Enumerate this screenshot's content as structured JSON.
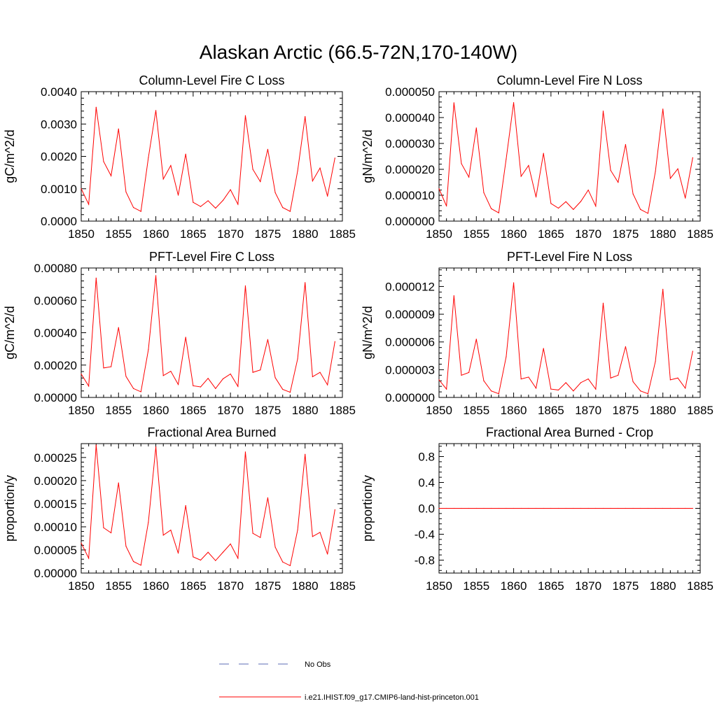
{
  "figure_title": "Alaskan Arctic (66.5-72N,170-140W)",
  "series_color": "#ff0000",
  "obs_color": "#5b6bb5",
  "legend": {
    "items": [
      {
        "label": "No Obs",
        "style": "dashed",
        "color": "#5b6bb5"
      },
      {
        "label": "i.e21.IHIST.f09_g17.CMIP6-land-hist-princeton.001",
        "style": "solid",
        "color": "#ff0000"
      }
    ]
  },
  "chart_data": [
    {
      "type": "line",
      "title": "Column-Level Fire C Loss",
      "ylabel": "gC/m^2/d",
      "xlim": [
        1850,
        1885
      ],
      "ylim": [
        0,
        0.004
      ],
      "xticks": [
        1850,
        1855,
        1860,
        1865,
        1870,
        1875,
        1880,
        1885
      ],
      "xtick_labels": [
        "1850",
        "1855",
        "1860",
        "1865",
        "1870",
        "1875",
        "1880",
        "1885"
      ],
      "yticks": [
        0,
        0.001,
        0.002,
        0.003,
        0.004
      ],
      "ytick_labels": [
        "0.0000",
        "0.0010",
        "0.0020",
        "0.0030",
        "0.0040"
      ],
      "x": [
        1850,
        1851,
        1852,
        1853,
        1854,
        1855,
        1856,
        1857,
        1858,
        1859,
        1860,
        1861,
        1862,
        1863,
        1864,
        1865,
        1866,
        1867,
        1868,
        1869,
        1870,
        1871,
        1872,
        1873,
        1874,
        1875,
        1876,
        1877,
        1878,
        1879,
        1880,
        1881,
        1882,
        1883,
        1884
      ],
      "series": [
        {
          "name": "i.e21.IHIST.f09_g17.CMIP6-land-hist-princeton.001",
          "values": [
            0.001,
            0.00052,
            0.00352,
            0.00184,
            0.0014,
            0.00285,
            0.0009,
            0.00042,
            0.0003,
            0.00196,
            0.00342,
            0.0013,
            0.00172,
            0.0008,
            0.00207,
            0.00058,
            0.00045,
            0.00063,
            0.0004,
            0.00064,
            0.00097,
            0.00052,
            0.00326,
            0.0016,
            0.00122,
            0.00222,
            0.00088,
            0.00042,
            0.0003,
            0.00155,
            0.00323,
            0.00124,
            0.00164,
            0.00077,
            0.00195
          ]
        }
      ]
    },
    {
      "type": "line",
      "title": "Column-Level Fire N Loss",
      "ylabel": "gN/m^2/d",
      "xlim": [
        1850,
        1885
      ],
      "ylim": [
        0,
        5e-05
      ],
      "xticks": [
        1850,
        1855,
        1860,
        1865,
        1870,
        1875,
        1880,
        1885
      ],
      "xtick_labels": [
        "1850",
        "1855",
        "1860",
        "1865",
        "1870",
        "1875",
        "1880",
        "1885"
      ],
      "yticks": [
        0,
        1e-05,
        2e-05,
        3e-05,
        4e-05,
        5e-05
      ],
      "ytick_labels": [
        "0.000000",
        "0.000010",
        "0.000020",
        "0.000030",
        "0.000040",
        "0.000050"
      ],
      "x": [
        1850,
        1851,
        1852,
        1853,
        1854,
        1855,
        1856,
        1857,
        1858,
        1859,
        1860,
        1861,
        1862,
        1863,
        1864,
        1865,
        1866,
        1867,
        1868,
        1869,
        1870,
        1871,
        1872,
        1873,
        1874,
        1875,
        1876,
        1877,
        1878,
        1879,
        1880,
        1881,
        1882,
        1883,
        1884
      ],
      "series": [
        {
          "name": "i.e21.IHIST.f09_g17.CMIP6-land-hist-princeton.001",
          "values": [
            1.25e-05,
            5.8e-06,
            4.57e-05,
            2.22e-05,
            1.7e-05,
            3.6e-05,
            1.1e-05,
            4.8e-06,
            3.2e-06,
            2.4e-05,
            4.58e-05,
            1.73e-05,
            2.15e-05,
            9.3e-06,
            2.62e-05,
            6.8e-06,
            5e-06,
            7.5e-06,
            4.5e-06,
            7.6e-06,
            1.2e-05,
            5.8e-06,
            4.25e-05,
            1.96e-05,
            1.5e-05,
            2.96e-05,
            1.05e-05,
            4.5e-06,
            3e-06,
            1.92e-05,
            4.33e-05,
            1.65e-05,
            2.02e-05,
            8.9e-06,
            2.45e-05
          ]
        }
      ]
    },
    {
      "type": "line",
      "title": "PFT-Level Fire C Loss",
      "ylabel": "gC/m^2/d",
      "xlim": [
        1850,
        1885
      ],
      "ylim": [
        0,
        0.0008
      ],
      "xticks": [
        1850,
        1855,
        1860,
        1865,
        1870,
        1875,
        1880,
        1885
      ],
      "xtick_labels": [
        "1850",
        "1855",
        "1860",
        "1865",
        "1870",
        "1875",
        "1880",
        "1885"
      ],
      "yticks": [
        0,
        0.0002,
        0.0004,
        0.0006,
        0.0008
      ],
      "ytick_labels": [
        "0.00000",
        "0.00020",
        "0.00040",
        "0.00060",
        "0.00080"
      ],
      "x": [
        1850,
        1851,
        1852,
        1853,
        1854,
        1855,
        1856,
        1857,
        1858,
        1859,
        1860,
        1861,
        1862,
        1863,
        1864,
        1865,
        1866,
        1867,
        1868,
        1869,
        1870,
        1871,
        1872,
        1873,
        1874,
        1875,
        1876,
        1877,
        1878,
        1879,
        1880,
        1881,
        1882,
        1883,
        1884
      ],
      "series": [
        {
          "name": "i.e21.IHIST.f09_g17.CMIP6-land-hist-princeton.001",
          "values": [
            0.000145,
            7e-05,
            0.000738,
            0.000182,
            0.00019,
            0.000432,
            0.00013,
            5.5e-05,
            3.5e-05,
            0.000295,
            0.000753,
            0.000135,
            0.000162,
            8e-05,
            0.000372,
            7.2e-05,
            6.5e-05,
            0.000118,
            5.5e-05,
            0.000115,
            0.000145,
            6.8e-05,
            0.00069,
            0.000155,
            0.00017,
            0.000358,
            0.000122,
            5e-05,
            3.2e-05,
            0.000238,
            0.00071,
            0.000128,
            0.000155,
            7.8e-05,
            0.000345
          ]
        }
      ]
    },
    {
      "type": "line",
      "title": "PFT-Level Fire N Loss",
      "ylabel": "gN/m^2/d",
      "xlim": [
        1850,
        1885
      ],
      "ylim": [
        0,
        1.4e-05
      ],
      "xticks": [
        1850,
        1855,
        1860,
        1865,
        1870,
        1875,
        1880,
        1885
      ],
      "xtick_labels": [
        "1850",
        "1855",
        "1860",
        "1865",
        "1870",
        "1875",
        "1880",
        "1885"
      ],
      "yticks": [
        0,
        3e-06,
        6e-06,
        9e-06,
        1.2e-05
      ],
      "ytick_labels": [
        "0.000000",
        "0.000003",
        "0.000006",
        "0.000009",
        "0.000012"
      ],
      "x": [
        1850,
        1851,
        1852,
        1853,
        1854,
        1855,
        1856,
        1857,
        1858,
        1859,
        1860,
        1861,
        1862,
        1863,
        1864,
        1865,
        1866,
        1867,
        1868,
        1869,
        1870,
        1871,
        1872,
        1873,
        1874,
        1875,
        1876,
        1877,
        1878,
        1879,
        1880,
        1881,
        1882,
        1883,
        1884
      ],
      "series": [
        {
          "name": "i.e21.IHIST.f09_g17.CMIP6-land-hist-princeton.001",
          "values": [
            1.9e-06,
            9e-07,
            1.1e-05,
            2.4e-06,
            2.7e-06,
            6.3e-06,
            1.8e-06,
            7e-07,
            4e-07,
            4.4e-06,
            1.24e-05,
            2e-06,
            2.2e-06,
            1e-06,
            5.3e-06,
            9e-07,
            8e-07,
            1.6e-06,
            7e-07,
            1.6e-06,
            2e-06,
            9e-07,
            1.02e-05,
            2.1e-06,
            2.4e-06,
            5.5e-06,
            1.7e-06,
            7e-07,
            4e-07,
            3.9e-06,
            1.17e-05,
            1.9e-06,
            2.1e-06,
            1e-06,
            5e-06
          ]
        }
      ]
    },
    {
      "type": "line",
      "title": "Fractional Area Burned",
      "ylabel": "proportion/y",
      "xlim": [
        1850,
        1885
      ],
      "ylim": [
        0,
        0.00028
      ],
      "xticks": [
        1850,
        1855,
        1860,
        1865,
        1870,
        1875,
        1880,
        1885
      ],
      "xtick_labels": [
        "1850",
        "1855",
        "1860",
        "1865",
        "1870",
        "1875",
        "1880",
        "1885"
      ],
      "yticks": [
        0,
        5e-05,
        0.0001,
        0.00015,
        0.0002,
        0.00025
      ],
      "ytick_labels": [
        "0.00000",
        "0.00005",
        "0.00010",
        "0.00015",
        "0.00020",
        "0.00025"
      ],
      "x": [
        1850,
        1851,
        1852,
        1853,
        1854,
        1855,
        1856,
        1857,
        1858,
        1859,
        1860,
        1861,
        1862,
        1863,
        1864,
        1865,
        1866,
        1867,
        1868,
        1869,
        1870,
        1871,
        1872,
        1873,
        1874,
        1875,
        1876,
        1877,
        1878,
        1879,
        1880,
        1881,
        1882,
        1883,
        1884
      ],
      "series": [
        {
          "name": "i.e21.IHIST.f09_g17.CMIP6-land-hist-princeton.001",
          "values": [
            6.5e-05,
            3.2e-05,
            0.000277,
            9.8e-05,
            8.7e-05,
            0.000195,
            5.8e-05,
            2.5e-05,
            1.7e-05,
            0.00011,
            0.000273,
            8.2e-05,
            9.3e-05,
            4.3e-05,
            0.000146,
            3.5e-05,
            2.8e-05,
            4.5e-05,
            2.7e-05,
            4.5e-05,
            6.3e-05,
            3.2e-05,
            0.000262,
            8.6e-05,
            7.7e-05,
            0.000163,
            5.6e-05,
            2.4e-05,
            1.6e-05,
            9.3e-05,
            0.000257,
            7.9e-05,
            8.8e-05,
            4.1e-05,
            0.000137
          ]
        }
      ]
    },
    {
      "type": "line",
      "title": "Fractional Area Burned - Crop",
      "ylabel": "proportion/y",
      "xlim": [
        1850,
        1885
      ],
      "ylim": [
        -1,
        1
      ],
      "xticks": [
        1850,
        1855,
        1860,
        1865,
        1870,
        1875,
        1880,
        1885
      ],
      "xtick_labels": [
        "1850",
        "1855",
        "1860",
        "1865",
        "1870",
        "1875",
        "1880",
        "1885"
      ],
      "yticks": [
        -0.8,
        -0.4,
        0,
        0.4,
        0.8
      ],
      "ytick_labels": [
        "-0.8",
        "-0.4",
        "0.0",
        "0.4",
        "0.8"
      ],
      "x": [
        1850,
        1851,
        1852,
        1853,
        1854,
        1855,
        1856,
        1857,
        1858,
        1859,
        1860,
        1861,
        1862,
        1863,
        1864,
        1865,
        1866,
        1867,
        1868,
        1869,
        1870,
        1871,
        1872,
        1873,
        1874,
        1875,
        1876,
        1877,
        1878,
        1879,
        1880,
        1881,
        1882,
        1883,
        1884
      ],
      "series": [
        {
          "name": "i.e21.IHIST.f09_g17.CMIP6-land-hist-princeton.001",
          "values": [
            0,
            0,
            0,
            0,
            0,
            0,
            0,
            0,
            0,
            0,
            0,
            0,
            0,
            0,
            0,
            0,
            0,
            0,
            0,
            0,
            0,
            0,
            0,
            0,
            0,
            0,
            0,
            0,
            0,
            0,
            0,
            0,
            0,
            0,
            0
          ]
        }
      ]
    }
  ]
}
